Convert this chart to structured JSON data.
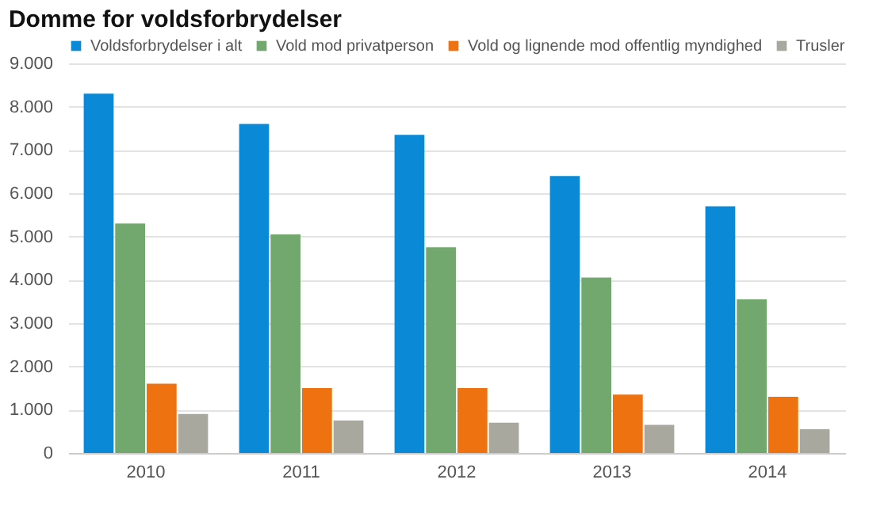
{
  "chart_data": {
    "type": "bar",
    "title": "Domme for voldsforbrydelser",
    "categories": [
      "2010",
      "2011",
      "2012",
      "2013",
      "2014"
    ],
    "series": [
      {
        "name": "Voldsforbrydelser i alt",
        "color": "#0a8ad6",
        "values": [
          8300,
          7600,
          7350,
          6400,
          5700
        ]
      },
      {
        "name": "Vold mod privatperson",
        "color": "#72a86e",
        "values": [
          5300,
          5050,
          4750,
          4050,
          3550
        ]
      },
      {
        "name": "Vold og lignende mod offentlig myndighed",
        "color": "#ef7211",
        "values": [
          1600,
          1500,
          1500,
          1350,
          1300
        ]
      },
      {
        "name": "Trusler",
        "color": "#a9a89f",
        "values": [
          900,
          750,
          700,
          650,
          550
        ]
      }
    ],
    "ylim": [
      0,
      9000
    ],
    "yticks": [
      {
        "value": 0,
        "label": "0"
      },
      {
        "value": 1000,
        "label": "1.000"
      },
      {
        "value": 2000,
        "label": "2.000"
      },
      {
        "value": 3000,
        "label": "3.000"
      },
      {
        "value": 4000,
        "label": "4.000"
      },
      {
        "value": 5000,
        "label": "5.000"
      },
      {
        "value": 6000,
        "label": "6.000"
      },
      {
        "value": 7000,
        "label": "7.000"
      },
      {
        "value": 8000,
        "label": "8.000"
      },
      {
        "value": 9000,
        "label": "9.000"
      }
    ],
    "grid": "y",
    "legend": "top"
  }
}
